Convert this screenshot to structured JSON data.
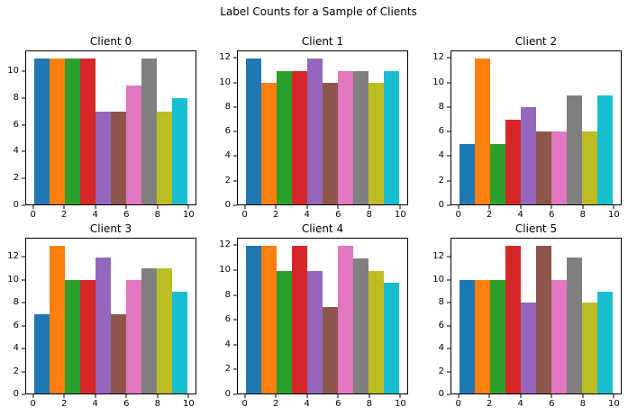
{
  "figure": {
    "title": "Label Counts for a Sample of Clients",
    "background": "#ffffff",
    "text_color": "#000000"
  },
  "palette": [
    "#1f77b4",
    "#ff7f0e",
    "#2ca02c",
    "#d62728",
    "#9467bd",
    "#8c564b",
    "#e377c2",
    "#7f7f7f",
    "#bcbd22",
    "#17becf"
  ],
  "chart_data": [
    {
      "type": "bar",
      "title": "Client 0",
      "categories": [
        0,
        1,
        2,
        3,
        4,
        5,
        6,
        7,
        8,
        9
      ],
      "values": [
        11,
        11,
        11,
        11,
        7,
        7,
        9,
        11,
        7,
        8
      ],
      "xlabel": "",
      "ylabel": "",
      "xticks": [
        0,
        2,
        4,
        6,
        8,
        10
      ],
      "yticks": [
        0,
        2,
        4,
        6,
        8,
        10
      ],
      "xlim": [
        -0.5,
        10.5
      ],
      "ylim": [
        0,
        11.55
      ],
      "grid": false,
      "legend": "none",
      "bar_span": 1
    },
    {
      "type": "bar",
      "title": "Client 1",
      "categories": [
        0,
        1,
        2,
        3,
        4,
        5,
        6,
        7,
        8,
        9
      ],
      "values": [
        12,
        10,
        11,
        11,
        12,
        10,
        11,
        11,
        10,
        11
      ],
      "xlabel": "",
      "ylabel": "",
      "xticks": [
        0,
        2,
        4,
        6,
        8,
        10
      ],
      "yticks": [
        0,
        2,
        4,
        6,
        8,
        10,
        12
      ],
      "xlim": [
        -0.5,
        10.5
      ],
      "ylim": [
        0,
        12.6
      ],
      "grid": false,
      "legend": "none",
      "bar_span": 1
    },
    {
      "type": "bar",
      "title": "Client 2",
      "categories": [
        0,
        1,
        2,
        3,
        4,
        5,
        6,
        7,
        8,
        9
      ],
      "values": [
        5,
        12,
        5,
        7,
        8,
        6,
        6,
        9,
        6,
        9
      ],
      "xlabel": "",
      "ylabel": "",
      "xticks": [
        0,
        2,
        4,
        6,
        8,
        10
      ],
      "yticks": [
        0,
        2,
        4,
        6,
        8,
        10,
        12
      ],
      "xlim": [
        -0.5,
        10.5
      ],
      "ylim": [
        0,
        12.6
      ],
      "grid": false,
      "legend": "none",
      "bar_span": 1
    },
    {
      "type": "bar",
      "title": "Client 3",
      "categories": [
        0,
        1,
        2,
        3,
        4,
        5,
        6,
        7,
        8,
        9
      ],
      "values": [
        7,
        13,
        10,
        10,
        12,
        7,
        10,
        11,
        11,
        9
      ],
      "xlabel": "",
      "ylabel": "",
      "xticks": [
        0,
        2,
        4,
        6,
        8,
        10
      ],
      "yticks": [
        0,
        2,
        4,
        6,
        8,
        10,
        12
      ],
      "xlim": [
        -0.5,
        10.5
      ],
      "ylim": [
        0,
        13.65
      ],
      "grid": false,
      "legend": "none",
      "bar_span": 1
    },
    {
      "type": "bar",
      "title": "Client 4",
      "categories": [
        0,
        1,
        2,
        3,
        4,
        5,
        6,
        7,
        8,
        9
      ],
      "values": [
        12,
        12,
        10,
        12,
        10,
        7,
        12,
        11,
        10,
        9
      ],
      "xlabel": "",
      "ylabel": "",
      "xticks": [
        0,
        2,
        4,
        6,
        8,
        10
      ],
      "yticks": [
        0,
        2,
        4,
        6,
        8,
        10,
        12
      ],
      "xlim": [
        -0.5,
        10.5
      ],
      "ylim": [
        0,
        12.6
      ],
      "grid": false,
      "legend": "none",
      "bar_span": 1
    },
    {
      "type": "bar",
      "title": "Client 5",
      "categories": [
        0,
        1,
        2,
        3,
        4,
        5,
        6,
        7,
        8,
        9
      ],
      "values": [
        10,
        10,
        10,
        13,
        8,
        13,
        10,
        12,
        8,
        9
      ],
      "xlabel": "",
      "ylabel": "",
      "xticks": [
        0,
        2,
        4,
        6,
        8,
        10
      ],
      "yticks": [
        0,
        2,
        4,
        6,
        8,
        10,
        12
      ],
      "xlim": [
        -0.5,
        10.5
      ],
      "ylim": [
        0,
        13.65
      ],
      "grid": false,
      "legend": "none",
      "bar_span": 1
    }
  ]
}
